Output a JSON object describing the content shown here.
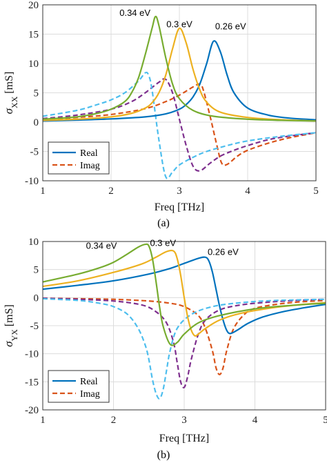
{
  "colors": {
    "f_026": "#0072BD",
    "f_030": "#EDB120",
    "f_034": "#77AC30",
    "imag_026": "#D95319",
    "imag_030": "#7E2F8E",
    "imag_034": "#4DBEEE"
  },
  "chart_data": [
    {
      "type": "line",
      "panel_label": "(a)",
      "xlabel": "Freq [THz]",
      "ylabel": "σ",
      "ylabel_sub": "XX",
      "ylabel_unit": " [mS]",
      "xlim": [
        1,
        5
      ],
      "ylim": [
        -10,
        20
      ],
      "xticks": [
        "1",
        "2",
        "3",
        "4",
        "5"
      ],
      "yticks": [
        "-10",
        "-5",
        "0",
        "5",
        "10",
        "15",
        "20"
      ],
      "grid": true,
      "legend": {
        "placement": "bottom-left",
        "entries": [
          "Real",
          "Imag"
        ]
      },
      "annotations": [
        {
          "text": "0.34 eV",
          "x": 2.35,
          "y": 18.1
        },
        {
          "text": "0.3 eV",
          "x": 3.0,
          "y": 16.2
        },
        {
          "text": "0.26 eV",
          "x": 3.75,
          "y": 15.8
        }
      ],
      "series": [
        {
          "name": "Real",
          "kind": "real",
          "color_key": "f_026",
          "x": [
            1.0,
            1.5,
            2.0,
            2.5,
            2.8,
            3.0,
            3.1,
            3.2,
            3.3,
            3.4,
            3.5,
            3.6,
            3.7,
            3.8,
            4.0,
            4.3,
            4.6,
            5.0
          ],
          "y": [
            0.2,
            0.35,
            0.55,
            0.9,
            1.4,
            2.2,
            3.0,
            4.3,
            6.5,
            10.0,
            13.8,
            12.0,
            8.0,
            5.0,
            2.4,
            1.2,
            0.7,
            0.4
          ]
        },
        {
          "name": "",
          "kind": "real",
          "color_key": "f_030",
          "x": [
            1.0,
            1.5,
            2.0,
            2.3,
            2.5,
            2.6,
            2.7,
            2.8,
            2.9,
            3.0,
            3.1,
            3.2,
            3.3,
            3.4,
            3.6,
            4.0,
            4.5,
            5.0
          ],
          "y": [
            0.3,
            0.5,
            0.9,
            1.5,
            2.4,
            3.3,
            5.0,
            8.0,
            12.5,
            16.0,
            13.5,
            9.0,
            5.5,
            3.4,
            1.7,
            0.8,
            0.4,
            0.2
          ]
        },
        {
          "name": "",
          "kind": "real",
          "color_key": "f_034",
          "x": [
            1.0,
            1.5,
            1.8,
            2.0,
            2.2,
            2.3,
            2.4,
            2.5,
            2.6,
            2.65,
            2.7,
            2.8,
            2.9,
            3.0,
            3.2,
            3.5,
            4.0,
            4.5,
            5.0
          ],
          "y": [
            0.5,
            0.9,
            1.5,
            2.2,
            3.5,
            5.0,
            7.5,
            11.5,
            16.0,
            18.0,
            16.5,
            11.0,
            6.5,
            4.0,
            2.0,
            1.0,
            0.5,
            0.3,
            0.2
          ]
        },
        {
          "name": "Imag",
          "kind": "imag",
          "color_key": "imag_026",
          "x": [
            1.0,
            1.5,
            2.0,
            2.5,
            2.8,
            3.0,
            3.2,
            3.3,
            3.35,
            3.45,
            3.55,
            3.62,
            3.7,
            3.85,
            4.0,
            4.3,
            4.6,
            5.0
          ],
          "y": [
            0.4,
            0.8,
            1.3,
            2.3,
            3.5,
            4.6,
            6.0,
            6.5,
            5.5,
            1.0,
            -4.0,
            -7.0,
            -7.2,
            -5.8,
            -4.8,
            -3.6,
            -2.7,
            -1.8
          ]
        },
        {
          "name": "",
          "kind": "imag",
          "color_key": "imag_030",
          "x": [
            1.0,
            1.5,
            2.0,
            2.3,
            2.5,
            2.7,
            2.8,
            2.9,
            3.0,
            3.1,
            3.2,
            3.3,
            3.45,
            3.6,
            3.8,
            4.0,
            4.3,
            4.6,
            5.0
          ],
          "y": [
            0.6,
            1.2,
            2.2,
            3.5,
            5.0,
            6.8,
            7.3,
            5.0,
            0.5,
            -4.0,
            -7.5,
            -8.3,
            -7.0,
            -5.8,
            -4.8,
            -4.0,
            -3.0,
            -2.4,
            -1.8
          ]
        },
        {
          "name": "",
          "kind": "imag",
          "color_key": "imag_034",
          "x": [
            1.0,
            1.5,
            1.8,
            2.0,
            2.2,
            2.4,
            2.5,
            2.55,
            2.6,
            2.7,
            2.8,
            2.9,
            3.0,
            3.2,
            3.4,
            3.7,
            4.0,
            4.5,
            5.0
          ],
          "y": [
            1.0,
            2.0,
            3.0,
            3.8,
            5.0,
            7.0,
            8.4,
            8.0,
            5.5,
            -3.0,
            -9.3,
            -8.5,
            -7.3,
            -6.0,
            -5.0,
            -4.0,
            -3.2,
            -2.4,
            -1.8
          ]
        }
      ]
    },
    {
      "type": "line",
      "panel_label": "(b)",
      "xlabel": "Freq [THz]",
      "ylabel": "σ",
      "ylabel_sub": "YX",
      "ylabel_unit": " [mS]",
      "xlim": [
        1,
        5
      ],
      "ylim": [
        -20,
        10
      ],
      "xticks": [
        "1",
        "2",
        "3",
        "4",
        "5"
      ],
      "yticks": [
        "-20",
        "-15",
        "-10",
        "-5",
        "0",
        "5",
        "10"
      ],
      "grid": true,
      "legend": {
        "placement": "bottom-left",
        "entries": [
          "Real",
          "Imag"
        ]
      },
      "annotations": [
        {
          "text": "0.34 eV",
          "x": 1.83,
          "y": 8.7
        },
        {
          "text": "0.3 eV",
          "x": 2.7,
          "y": 9.2
        },
        {
          "text": "0.26 eV",
          "x": 3.55,
          "y": 7.6
        }
      ],
      "series": [
        {
          "name": "Real",
          "kind": "real",
          "color_key": "f_026",
          "x": [
            1.0,
            1.5,
            2.0,
            2.5,
            2.8,
            3.0,
            3.2,
            3.3,
            3.35,
            3.4,
            3.45,
            3.5,
            3.55,
            3.6,
            3.65,
            3.75,
            3.9,
            4.1,
            4.4,
            4.7,
            5.0
          ],
          "y": [
            1.5,
            2.2,
            3.0,
            4.2,
            5.2,
            6.1,
            7.0,
            7.2,
            6.5,
            4.5,
            1.5,
            -1.5,
            -4.0,
            -5.8,
            -6.4,
            -5.8,
            -4.6,
            -3.5,
            -2.5,
            -1.8,
            -1.2
          ]
        },
        {
          "name": "",
          "kind": "real",
          "color_key": "f_030",
          "x": [
            1.0,
            1.5,
            2.0,
            2.4,
            2.6,
            2.75,
            2.85,
            2.9,
            2.95,
            3.0,
            3.05,
            3.1,
            3.15,
            3.2,
            3.3,
            3.5,
            3.8,
            4.2,
            4.6,
            5.0
          ],
          "y": [
            2.0,
            3.0,
            4.5,
            6.0,
            7.2,
            8.2,
            8.3,
            7.0,
            4.0,
            0.0,
            -3.5,
            -5.8,
            -6.8,
            -6.5,
            -5.5,
            -4.0,
            -2.8,
            -1.9,
            -1.3,
            -0.9
          ]
        },
        {
          "name": "",
          "kind": "real",
          "color_key": "f_034",
          "x": [
            1.0,
            1.5,
            1.8,
            2.0,
            2.2,
            2.35,
            2.45,
            2.5,
            2.55,
            2.6,
            2.65,
            2.7,
            2.8,
            2.9,
            3.0,
            3.2,
            3.5,
            4.0,
            4.5,
            5.0
          ],
          "y": [
            2.8,
            4.2,
            5.3,
            6.3,
            7.8,
            9.0,
            9.5,
            9.2,
            7.0,
            3.0,
            -1.5,
            -5.0,
            -8.3,
            -8.0,
            -6.5,
            -4.5,
            -3.2,
            -2.0,
            -1.4,
            -1.0
          ]
        },
        {
          "name": "Imag",
          "kind": "imag",
          "color_key": "imag_026",
          "x": [
            1.0,
            1.5,
            2.0,
            2.5,
            2.8,
            3.0,
            3.2,
            3.3,
            3.4,
            3.45,
            3.5,
            3.55,
            3.6,
            3.7,
            3.85,
            4.0,
            4.3,
            4.6,
            5.0
          ],
          "y": [
            -0.1,
            -0.2,
            -0.3,
            -0.6,
            -1.0,
            -1.6,
            -3.2,
            -5.5,
            -9.5,
            -12.5,
            -13.7,
            -12.5,
            -9.5,
            -5.5,
            -3.0,
            -1.9,
            -1.2,
            -0.8,
            -0.5
          ]
        },
        {
          "name": "",
          "kind": "imag",
          "color_key": "imag_030",
          "x": [
            1.0,
            1.5,
            2.0,
            2.4,
            2.6,
            2.75,
            2.85,
            2.9,
            2.95,
            3.0,
            3.05,
            3.1,
            3.2,
            3.3,
            3.5,
            3.8,
            4.2,
            4.6,
            5.0
          ],
          "y": [
            -0.1,
            -0.3,
            -0.6,
            -1.3,
            -2.5,
            -4.5,
            -8.0,
            -11.5,
            -15.0,
            -16.0,
            -14.0,
            -11.0,
            -6.5,
            -4.0,
            -2.2,
            -1.3,
            -0.8,
            -0.5,
            -0.3
          ]
        },
        {
          "name": "",
          "kind": "imag",
          "color_key": "imag_034",
          "x": [
            1.0,
            1.5,
            1.8,
            2.0,
            2.2,
            2.35,
            2.45,
            2.5,
            2.55,
            2.6,
            2.65,
            2.7,
            2.75,
            2.8,
            2.9,
            3.1,
            3.4,
            3.8,
            4.3,
            5.0
          ],
          "y": [
            -0.2,
            -0.5,
            -1.0,
            -1.6,
            -3.0,
            -5.5,
            -8.5,
            -11.0,
            -14.5,
            -17.0,
            -18.0,
            -16.5,
            -13.0,
            -9.5,
            -5.5,
            -3.0,
            -1.6,
            -0.9,
            -0.5,
            -0.3
          ]
        }
      ]
    }
  ]
}
